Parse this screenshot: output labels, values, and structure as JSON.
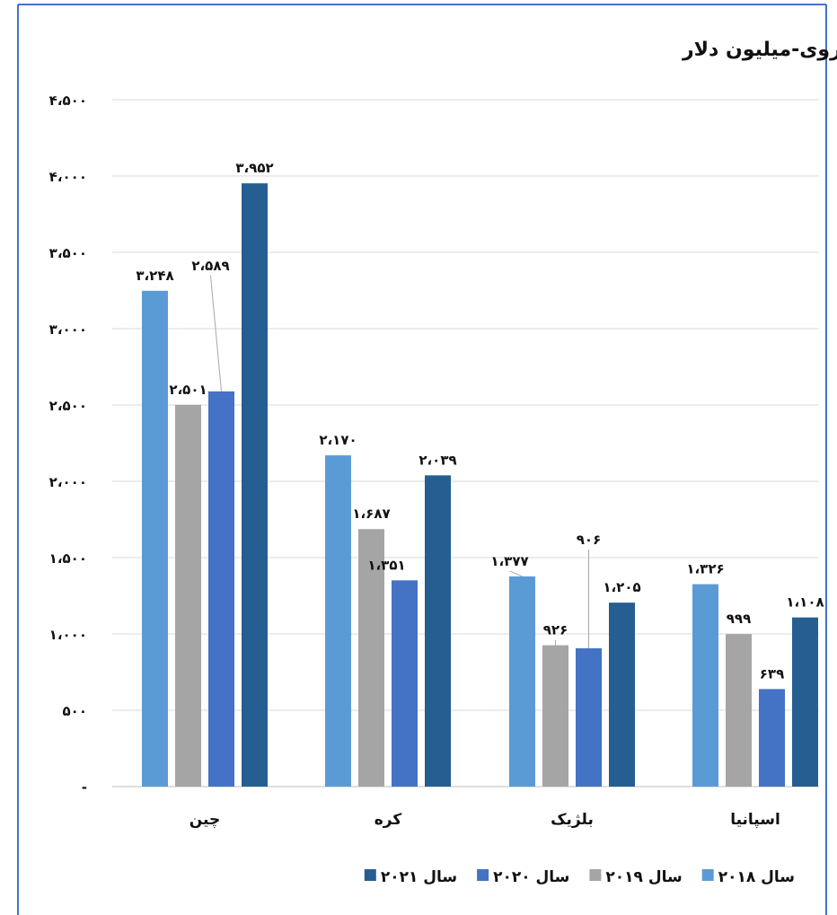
{
  "chart_data": {
    "type": "bar",
    "title": "مبلغ واردات روی-میلیون دلار",
    "categories": [
      "چین",
      "کره",
      "بلژیک",
      "اسپانیا"
    ],
    "series": [
      {
        "name": "سال ۲۰۱۸",
        "color": "#5B9BD5",
        "values": [
          3248,
          2170,
          1377,
          1326
        ],
        "labels": [
          "۳،۲۴۸",
          "۲،۱۷۰",
          "۱،۳۷۷",
          "۱،۳۲۶"
        ]
      },
      {
        "name": "سال ۲۰۱۹",
        "color": "#A5A5A5",
        "values": [
          2501,
          1687,
          926,
          999
        ],
        "labels": [
          "۲،۵۰۱",
          "۱،۶۸۷",
          "۹۲۶",
          "۹۹۹"
        ]
      },
      {
        "name": "سال ۲۰۲۰",
        "color": "#4472C4",
        "values": [
          2589,
          1351,
          906,
          639
        ],
        "labels": [
          "۲،۵۸۹",
          "۱،۳۵۱",
          "۹۰۶",
          "۶۳۹"
        ]
      },
      {
        "name": "سال ۲۰۲۱",
        "color": "#255E91",
        "values": [
          3952,
          2039,
          1205,
          1108
        ],
        "labels": [
          "۳،۹۵۲",
          "۲،۰۳۹",
          "۱،۲۰۵",
          "۱،۱۰۸"
        ]
      }
    ],
    "ylim": [
      0,
      4500
    ],
    "yticks": [
      0,
      500,
      1000,
      1500,
      2000,
      2500,
      3000,
      3500,
      4000,
      4500
    ],
    "ytick_labels": [
      "-",
      "۵۰۰",
      "۱،۰۰۰",
      "۱،۵۰۰",
      "۲،۰۰۰",
      "۲،۵۰۰",
      "۳،۰۰۰",
      "۳،۵۰۰",
      "۴،۰۰۰",
      "۴،۵۰۰"
    ],
    "grid": true,
    "legend_position": "bottom",
    "xlabel": "",
    "ylabel": ""
  }
}
